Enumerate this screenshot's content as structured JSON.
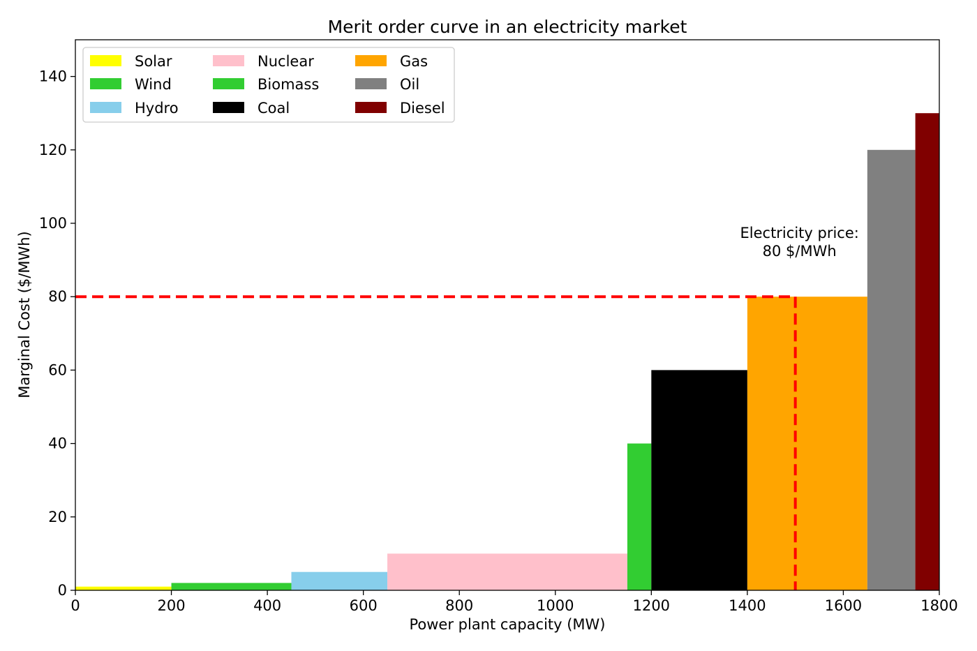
{
  "chart_data": {
    "type": "bar",
    "title": "Merit order curve in an electricity market",
    "xlabel": "Power plant capacity (MW)",
    "ylabel": "Marginal Cost ($/MWh)",
    "xlim": [
      0,
      1800
    ],
    "ylim": [
      0,
      150
    ],
    "xticks": [
      0,
      200,
      400,
      600,
      800,
      1000,
      1200,
      1400,
      1600,
      1800
    ],
    "yticks": [
      0,
      20,
      40,
      60,
      80,
      100,
      120,
      140
    ],
    "grid": false,
    "legend_position": "top-left",
    "series": [
      {
        "name": "Solar",
        "x_start": 0,
        "x_end": 200,
        "value": 1,
        "color": "#ffff00"
      },
      {
        "name": "Wind",
        "x_start": 200,
        "x_end": 450,
        "value": 2,
        "color": "#32cd32"
      },
      {
        "name": "Hydro",
        "x_start": 450,
        "x_end": 650,
        "value": 5,
        "color": "#87ceeb"
      },
      {
        "name": "Nuclear",
        "x_start": 650,
        "x_end": 1150,
        "value": 10,
        "color": "#ffc0cb"
      },
      {
        "name": "Biomass",
        "x_start": 1150,
        "x_end": 1200,
        "value": 40,
        "color": "#32cd32"
      },
      {
        "name": "Coal",
        "x_start": 1200,
        "x_end": 1400,
        "value": 60,
        "color": "#000000"
      },
      {
        "name": "Gas",
        "x_start": 1400,
        "x_end": 1650,
        "value": 80,
        "color": "#ffa500"
      },
      {
        "name": "Oil",
        "x_start": 1650,
        "x_end": 1750,
        "value": 120,
        "color": "#808080"
      },
      {
        "name": "Diesel",
        "x_start": 1750,
        "x_end": 1800,
        "value": 130,
        "color": "#800000"
      }
    ],
    "price_line": {
      "price": 80,
      "demand": 1500,
      "color": "#ff0000",
      "style": "dashed"
    },
    "annotation": {
      "lines": [
        "Electricity price:",
        "80 $/MWh"
      ],
      "anchor_x": 1500,
      "anchor_y": 96
    }
  }
}
